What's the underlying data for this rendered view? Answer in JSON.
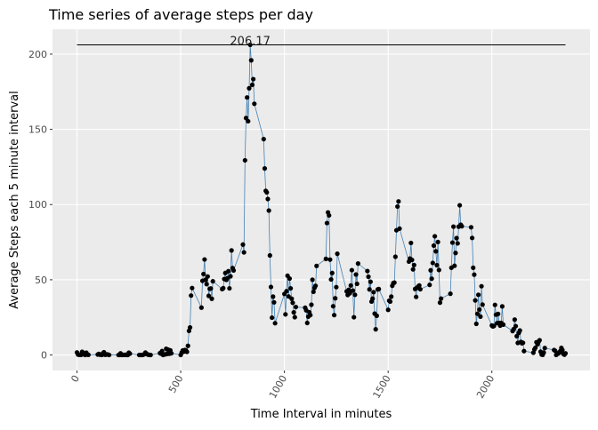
{
  "chart_data": {
    "type": "line",
    "title": "Time series of average steps per day",
    "x_label": "Time Interval in minutes",
    "y_label": "Average Steps each 5 minute interval",
    "x": [
      0,
      5,
      10,
      15,
      20,
      25,
      30,
      35,
      40,
      45,
      50,
      55,
      100,
      105,
      110,
      115,
      120,
      125,
      130,
      135,
      140,
      145,
      150,
      155,
      200,
      205,
      210,
      215,
      220,
      225,
      230,
      235,
      240,
      245,
      250,
      255,
      300,
      305,
      310,
      315,
      320,
      325,
      330,
      335,
      340,
      345,
      350,
      355,
      400,
      405,
      410,
      415,
      420,
      425,
      430,
      435,
      440,
      445,
      450,
      455,
      500,
      505,
      510,
      515,
      520,
      525,
      530,
      535,
      540,
      545,
      550,
      555,
      600,
      605,
      610,
      615,
      620,
      625,
      630,
      635,
      640,
      645,
      650,
      655,
      700,
      705,
      710,
      715,
      720,
      725,
      730,
      735,
      740,
      745,
      750,
      755,
      800,
      805,
      810,
      815,
      820,
      825,
      830,
      835,
      840,
      845,
      850,
      855,
      900,
      905,
      910,
      915,
      920,
      925,
      930,
      935,
      940,
      945,
      950,
      955,
      1000,
      1005,
      1010,
      1015,
      1020,
      1025,
      1030,
      1035,
      1040,
      1045,
      1050,
      1055,
      1100,
      1105,
      1110,
      1115,
      1120,
      1125,
      1130,
      1135,
      1140,
      1145,
      1150,
      1155,
      1200,
      1205,
      1210,
      1215,
      1220,
      1225,
      1230,
      1235,
      1240,
      1245,
      1250,
      1255,
      1300,
      1305,
      1310,
      1315,
      1320,
      1325,
      1330,
      1335,
      1340,
      1345,
      1350,
      1355,
      1400,
      1405,
      1410,
      1415,
      1420,
      1425,
      1430,
      1435,
      1440,
      1445,
      1450,
      1455,
      1500,
      1505,
      1510,
      1515,
      1520,
      1525,
      1530,
      1535,
      1540,
      1545,
      1550,
      1555,
      1600,
      1605,
      1610,
      1615,
      1620,
      1625,
      1630,
      1635,
      1640,
      1645,
      1650,
      1655,
      1700,
      1705,
      1710,
      1715,
      1720,
      1725,
      1730,
      1735,
      1740,
      1745,
      1750,
      1755,
      1800,
      1805,
      1810,
      1815,
      1820,
      1825,
      1830,
      1835,
      1840,
      1845,
      1850,
      1855,
      1900,
      1905,
      1910,
      1915,
      1920,
      1925,
      1930,
      1935,
      1940,
      1945,
      1950,
      1955,
      2000,
      2005,
      2010,
      2015,
      2020,
      2025,
      2030,
      2035,
      2040,
      2045,
      2050,
      2055,
      2100,
      2105,
      2110,
      2115,
      2120,
      2125,
      2130,
      2135,
      2140,
      2145,
      2150,
      2155,
      2200,
      2205,
      2210,
      2215,
      2220,
      2225,
      2230,
      2235,
      2240,
      2245,
      2250,
      2255,
      2300,
      2305,
      2310,
      2315,
      2320,
      2325,
      2330,
      2335,
      2340,
      2345,
      2350,
      2355
    ],
    "series": [
      {
        "color": "#4682b4",
        "point_color": "#000000",
        "values": [
          1.7,
          0.3,
          0.1,
          0.2,
          0.1,
          2.1,
          0.5,
          0.9,
          0,
          1.5,
          0.3,
          0.1,
          0.3,
          0.7,
          0.2,
          0.3,
          0,
          1.1,
          1.8,
          0.2,
          0.2,
          0.4,
          0.3,
          0,
          0,
          0,
          1.1,
          0,
          0,
          0.1,
          0,
          0.2,
          0,
          0,
          1.5,
          0.9,
          0,
          0,
          0,
          0,
          0.2,
          0.6,
          1.6,
          0.6,
          0.5,
          0.1,
          0,
          0,
          1.2,
          0.9,
          2.6,
          0,
          0.3,
          0.4,
          4.1,
          0.7,
          3.5,
          0.8,
          3.1,
          1.1,
          0,
          1.6,
          3,
          2.2,
          3.3,
          3,
          2.1,
          6.1,
          16,
          18.3,
          39.5,
          44.5,
          31.5,
          49.3,
          53.8,
          63.5,
          50,
          47.1,
          52.2,
          39.3,
          44,
          44.2,
          37.4,
          49,
          43.8,
          44.4,
          50.5,
          54.5,
          49.9,
          51,
          55.7,
          44.3,
          52.3,
          69.5,
          57.8,
          56.2,
          73.4,
          68.2,
          129.4,
          157.5,
          171.2,
          155.4,
          177.3,
          206.2,
          195.9,
          179.6,
          183.4,
          167,
          143.5,
          124,
          109.1,
          108.1,
          103.7,
          96,
          66.2,
          45.2,
          24.8,
          38.8,
          35,
          21.1,
          40.6,
          27,
          42.4,
          52.7,
          38.9,
          50.8,
          44.3,
          37.4,
          34.7,
          28.3,
          25.1,
          31.9,
          31.4,
          29.7,
          21.3,
          25.5,
          28.4,
          26.5,
          33.4,
          50,
          42,
          44.6,
          46,
          59.2,
          63.9,
          87.7,
          94.8,
          92.8,
          63.4,
          50.2,
          54.5,
          32.4,
          26.5,
          37.7,
          45.1,
          67.3,
          42.3,
          39.9,
          43.3,
          41,
          46.2,
          56.4,
          42.8,
          25.1,
          40,
          53.5,
          47.3,
          60.8,
          55.8,
          52,
          43.6,
          48.7,
          35.5,
          37.5,
          41.8,
          27.5,
          17.1,
          26.1,
          43.6,
          43.8,
          30,
          36.1,
          35.5,
          38.8,
          46,
          47.8,
          48.1,
          65.3,
          82.9,
          98.7,
          102.1,
          84,
          62.1,
          64.1,
          74.5,
          63.2,
          56.9,
          59.8,
          43.9,
          38.6,
          44.7,
          45.5,
          46.2,
          43.7,
          46.6,
          56.3,
          50.7,
          61.2,
          72.7,
          78.9,
          68.9,
          59.7,
          75.1,
          56.5,
          34.8,
          37.5,
          40.7,
          58,
          74.7,
          85.3,
          59.3,
          67.8,
          77.7,
          74.2,
          85.3,
          99.5,
          86.6,
          85.6,
          84.9,
          77.8,
          58,
          53.4,
          36.3,
          20.7,
          27.4,
          40,
          30.2,
          25.5,
          45.7,
          33.5,
          19.6,
          19,
          19.3,
          33.3,
          26.8,
          21.2,
          27.3,
          21.3,
          19.5,
          21.3,
          32.3,
          20.2,
          15.9,
          17.2,
          23.5,
          19.2,
          12.5,
          8,
          14.7,
          16.3,
          8.7,
          7.8,
          8.1,
          2.6,
          1.5,
          3.7,
          4.8,
          8.5,
          7.1,
          8.7,
          9.8,
          2.2,
          0.3,
          0.1,
          1.6,
          4.6,
          3.3,
          2.8,
          0,
          0.8,
          1,
          1.6,
          2.6,
          4.7,
          3.3,
          0.6,
          0.2,
          1.1
        ]
      }
    ],
    "hline": 206.17,
    "annotation": "206.17",
    "annotation_x": 835,
    "xlim": [
      -118,
      2473
    ],
    "ylim": [
      -10.3,
      216.5
    ],
    "xticks": [
      0,
      500,
      1000,
      1500,
      2000
    ],
    "yticks": [
      0,
      50,
      100,
      150,
      200
    ],
    "grid": true
  }
}
